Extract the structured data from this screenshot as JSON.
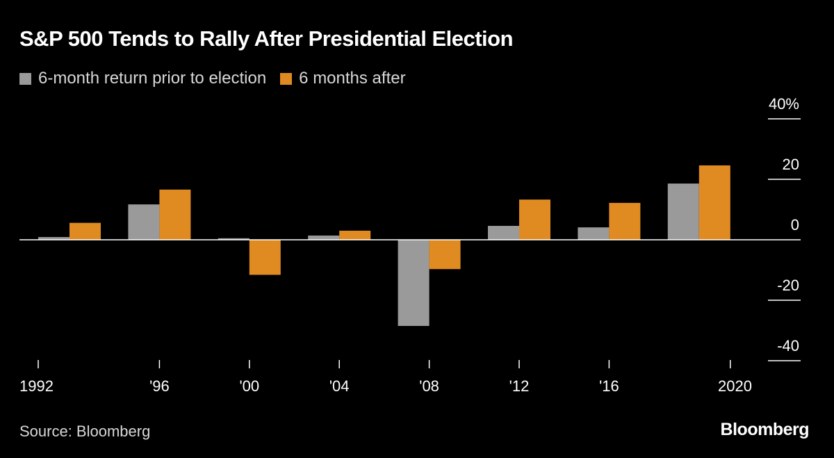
{
  "chart_data": {
    "type": "bar",
    "title": "S&P 500 Tends to Rally After Presidential Election",
    "categories": [
      "1992",
      "'96",
      "'00",
      "'04",
      "'08",
      "'12",
      "'16",
      "2020"
    ],
    "series": [
      {
        "name": "6-month return prior to election",
        "color": "#9a9a9a",
        "values": [
          0.9,
          11.7,
          0.5,
          1.4,
          -28.5,
          4.6,
          4.1,
          18.6
        ]
      },
      {
        "name": "6 months after",
        "color": "#e08a22",
        "values": [
          5.6,
          16.6,
          -11.6,
          3.0,
          -9.7,
          13.3,
          12.2,
          24.6
        ]
      }
    ],
    "ylim": [
      -40,
      40
    ],
    "yticks": [
      40,
      20,
      0,
      -20,
      -40
    ],
    "ytick_labels": [
      "40%",
      "20",
      "0",
      "-20",
      "-40"
    ],
    "y_axis_position": "right",
    "legend_position": "top-left",
    "grid": false
  },
  "source": "Source: Bloomberg",
  "logo": "Bloomberg",
  "background": "#000000"
}
